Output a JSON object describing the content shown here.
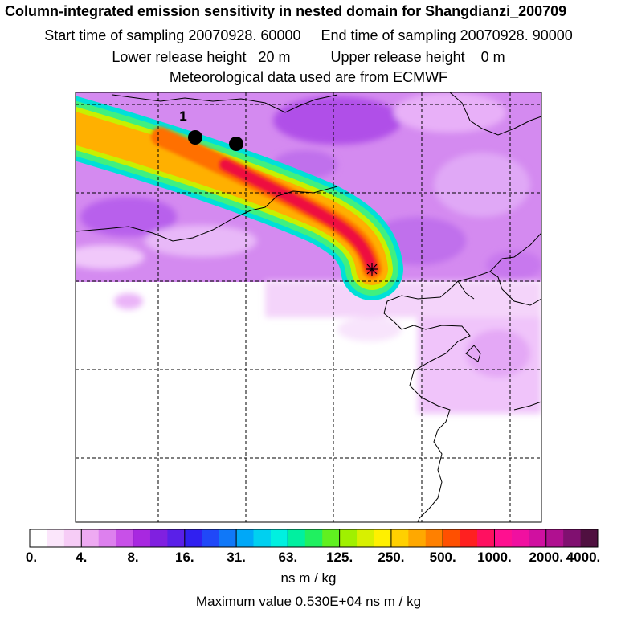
{
  "header": {
    "title": "Column-integrated emission sensitivity in nested domain for Shangdianzi_200709",
    "start_label": "Start time of sampling",
    "start_value": "20070928. 60000",
    "end_label": "End time of sampling",
    "end_value": "20070928. 90000",
    "lower_label": "Lower release height",
    "lower_value": "20 m",
    "upper_label": "Upper release height",
    "upper_value": "0 m",
    "met_text": "Meteorological data used are from ECMWF"
  },
  "map": {
    "marker_label": "1",
    "colors": {
      "plume_core": "#e8003a",
      "plume_orange": "#ff9a00",
      "plume_yellow": "#ffe000",
      "plume_green": "#30f070",
      "plume_cyan": "#00e8e8",
      "background_purple": "#d080f0",
      "light_purple": "#f0c8f8"
    }
  },
  "colorbar": {
    "tick_labels": [
      "0.",
      "4.",
      "8.",
      "16.",
      "31.",
      "63.",
      "125.",
      "250.",
      "500.",
      "1000.",
      "2000.",
      "4000."
    ],
    "colors": [
      "#ffffff",
      "#fbe6fb",
      "#f6ccf6",
      "#eeaaf2",
      "#dd80ee",
      "#c850e8",
      "#a828e0",
      "#8020e0",
      "#5a20e8",
      "#3020f0",
      "#2048f8",
      "#1078f8",
      "#00a8f8",
      "#00d0f0",
      "#00f0e0",
      "#00f0a0",
      "#20f060",
      "#60f020",
      "#a0f000",
      "#d8f000",
      "#fff000",
      "#ffd000",
      "#ffa800",
      "#ff8000",
      "#ff5000",
      "#ff2020",
      "#ff1060",
      "#ff1090",
      "#f010a0",
      "#d010a0",
      "#b01090",
      "#801070",
      "#501040"
    ],
    "units": "ns m / kg",
    "max_text": "Maximum value  0.530E+04 ns m / kg"
  }
}
